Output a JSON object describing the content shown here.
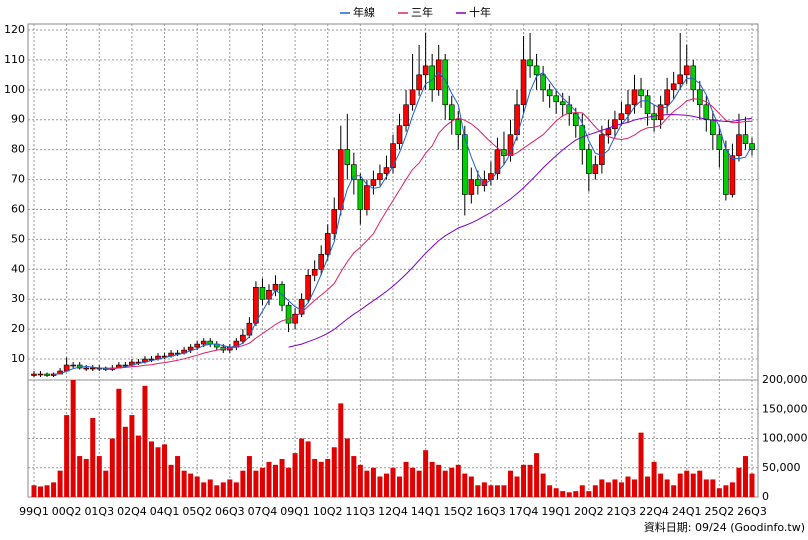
{
  "chart_data": {
    "type": "candlestick",
    "categories": [
      "99Q1",
      null,
      null,
      null,
      null,
      "00Q2",
      null,
      null,
      null,
      null,
      "01Q3",
      null,
      null,
      null,
      null,
      "02Q4",
      null,
      null,
      null,
      null,
      "04Q1",
      null,
      null,
      null,
      null,
      "05Q2",
      null,
      null,
      null,
      null,
      "06Q3",
      null,
      null,
      null,
      null,
      "07Q4",
      null,
      null,
      null,
      null,
      "09Q1",
      null,
      null,
      null,
      null,
      "10Q2",
      null,
      null,
      null,
      null,
      "11Q3",
      null,
      null,
      null,
      null,
      "12Q4",
      null,
      null,
      null,
      null,
      "14Q1",
      null,
      null,
      null,
      null,
      "15Q2",
      null,
      null,
      null,
      null,
      "16Q3",
      null,
      null,
      null,
      null,
      "17Q4",
      null,
      null,
      null,
      null,
      "19Q1",
      null,
      null,
      null,
      null,
      "20Q2",
      null,
      null,
      null,
      null,
      "21Q3",
      null,
      null,
      null,
      null,
      "22Q4",
      null,
      null,
      null,
      null,
      "24Q1",
      null,
      null,
      null,
      null,
      "25Q2",
      null,
      null,
      null,
      null,
      "26Q3"
    ],
    "open": [
      4.5,
      5,
      5,
      4.5,
      5,
      6,
      8,
      8,
      7,
      7,
      7,
      7,
      6.5,
      7,
      8,
      8,
      9,
      9,
      10,
      10,
      11,
      11,
      12,
      12,
      13,
      14,
      15,
      16,
      15,
      14,
      13,
      14,
      16,
      18,
      22,
      34,
      30,
      33,
      35,
      28,
      22,
      25,
      30,
      38,
      40,
      45,
      52,
      60,
      80,
      75,
      70,
      60,
      68,
      70,
      72,
      74,
      82,
      88,
      95,
      100,
      105,
      108,
      100,
      110,
      95,
      90,
      85,
      65,
      70,
      68,
      70,
      72,
      80,
      78,
      85,
      95,
      110,
      108,
      105,
      100,
      98,
      96,
      95,
      92,
      88,
      80,
      72,
      75,
      85,
      87,
      90,
      92,
      95,
      100,
      98,
      92,
      90,
      95,
      100,
      102,
      105,
      108,
      100,
      95,
      90,
      85,
      80,
      65,
      78,
      85,
      82
    ],
    "high": [
      6,
      6,
      5.5,
      5.5,
      7,
      10.5,
      9,
      9,
      8,
      8,
      8,
      7.5,
      8,
      9,
      9,
      10,
      10,
      11,
      11,
      12,
      12,
      13,
      13,
      14,
      15,
      16,
      17,
      17,
      16,
      15,
      15,
      17,
      20,
      24,
      36,
      37,
      35,
      38,
      36,
      29,
      27,
      32,
      40,
      43,
      48,
      55,
      64,
      88,
      92,
      79,
      72,
      70,
      73,
      75,
      78,
      85,
      92,
      100,
      112,
      115,
      119,
      112,
      115,
      112,
      98,
      93,
      88,
      74,
      73,
      73,
      76,
      84,
      86,
      90,
      100,
      118,
      119,
      112,
      108,
      102,
      100,
      99,
      98,
      94,
      92,
      82,
      78,
      88,
      90,
      93,
      96,
      100,
      105,
      104,
      100,
      95,
      98,
      104,
      106,
      119,
      115,
      110,
      103,
      98,
      93,
      88,
      83,
      82,
      92,
      91,
      84
    ],
    "low": [
      4,
      4,
      4,
      4,
      5,
      6,
      7,
      6.5,
      6,
      6,
      6,
      6,
      6,
      7,
      7,
      7.5,
      8,
      8.5,
      9,
      9.5,
      10,
      10.5,
      11,
      11.5,
      12,
      13,
      14,
      14,
      13,
      12,
      12,
      13,
      15,
      17,
      21,
      28,
      28,
      31,
      26,
      19,
      20,
      24,
      29,
      36,
      38,
      43,
      50,
      58,
      70,
      65,
      55,
      58,
      65,
      68,
      70,
      72,
      80,
      86,
      93,
      98,
      100,
      96,
      98,
      90,
      85,
      80,
      58,
      62,
      65,
      66,
      68,
      70,
      75,
      76,
      83,
      92,
      104,
      100,
      96,
      94,
      92,
      91,
      88,
      84,
      75,
      66,
      70,
      72,
      82,
      84,
      88,
      89,
      92,
      94,
      88,
      86,
      87,
      92,
      97,
      100,
      102,
      96,
      90,
      86,
      80,
      74,
      63,
      64,
      76,
      80,
      78
    ],
    "close": [
      5,
      5,
      4.5,
      5,
      6,
      8,
      8,
      7,
      7,
      7,
      7,
      6.5,
      7,
      8,
      8,
      9,
      9,
      10,
      10,
      11,
      11,
      12,
      12,
      13,
      14,
      15,
      16,
      15,
      14,
      13,
      14,
      16,
      18,
      22,
      34,
      30,
      33,
      35,
      28,
      22,
      25,
      30,
      38,
      40,
      45,
      52,
      60,
      80,
      75,
      70,
      60,
      68,
      70,
      72,
      74,
      82,
      88,
      95,
      100,
      105,
      108,
      100,
      110,
      95,
      90,
      85,
      65,
      70,
      68,
      70,
      72,
      80,
      78,
      85,
      95,
      110,
      108,
      105,
      100,
      98,
      96,
      95,
      92,
      88,
      80,
      72,
      75,
      85,
      87,
      90,
      92,
      95,
      100,
      98,
      92,
      90,
      95,
      100,
      102,
      105,
      108,
      100,
      95,
      90,
      85,
      80,
      65,
      78,
      85,
      82,
      80
    ],
    "up_color": "#ff0000",
    "down_color": "#00d000",
    "series": [
      {
        "name": "年線",
        "color": "#2060d0",
        "values": [
          null,
          null,
          null,
          4.9,
          5.1,
          5.9,
          6.8,
          7.3,
          7.5,
          7.3,
          7,
          6.9,
          6.9,
          7.1,
          7.4,
          8,
          8.5,
          9,
          9.5,
          10,
          10.5,
          11,
          11.5,
          12,
          12.8,
          13.5,
          14.5,
          15,
          15,
          14.5,
          14,
          14.3,
          15.3,
          17.5,
          22.5,
          26,
          29.8,
          33,
          31.5,
          29.5,
          27.5,
          26.3,
          28.8,
          33.3,
          38.3,
          43.8,
          49.3,
          59.3,
          66.8,
          71.3,
          71.3,
          68.3,
          67,
          67.5,
          71,
          74.5,
          79,
          84.8,
          91.3,
          97,
          102,
          103.3,
          105.8,
          103.3,
          98.8,
          95,
          83.8,
          77.5,
          72,
          68.3,
          70,
          72.5,
          75,
          78.8,
          84.5,
          92,
          99.5,
          104.5,
          105.8,
          102.8,
          99.8,
          97.3,
          95.3,
          92.8,
          88.8,
          83,
          78.8,
          78,
          79.8,
          84.3,
          88.5,
          91,
          94.3,
          96.3,
          96.3,
          95,
          93.8,
          94.3,
          96.8,
          100.5,
          103.8,
          103.8,
          102,
          98.3,
          92.5,
          87.5,
          80,
          77,
          77,
          77.5,
          81.3
        ]
      },
      {
        "name": "三年",
        "color": "#e0206a",
        "values": [
          null,
          null,
          null,
          null,
          null,
          null,
          null,
          null,
          null,
          null,
          null,
          6.6,
          6.8,
          7,
          7.2,
          7.4,
          7.6,
          7.9,
          8.1,
          8.5,
          8.8,
          9.2,
          9.6,
          10.1,
          10.7,
          11.3,
          12,
          12.5,
          13,
          13.3,
          13.6,
          14,
          14.5,
          15.3,
          17,
          18.5,
          20,
          21.6,
          22.8,
          23.4,
          24.2,
          25.6,
          27.6,
          29.6,
          31.4,
          33.2,
          35.3,
          39.1,
          42.5,
          45.5,
          47.4,
          49.6,
          51.9,
          55.8,
          59.5,
          63,
          66.5,
          70.1,
          73.4,
          75.5,
          78.8,
          81.3,
          85.5,
          87.8,
          89.5,
          90.6,
          89.8,
          88.6,
          86.8,
          84.6,
          82.5,
          80.6,
          78.8,
          78,
          78.9,
          80.5,
          82,
          83.5,
          85,
          87.3,
          89.6,
          91.3,
          92.2,
          92.4,
          92.3,
          90.1,
          87.6,
          85.5,
          84.4,
          83.7,
          83.4,
          83.8,
          84.9,
          86.4,
          87.3,
          87.5,
          88.1,
          90.5,
          92.8,
          94.4,
          96.3,
          97,
          96.8,
          96,
          94.3,
          92,
          89.8,
          89,
          89.1,
          89.4,
          89.5
        ]
      },
      {
        "name": "十年",
        "color": "#8000c8",
        "values": [
          null,
          null,
          null,
          null,
          null,
          null,
          null,
          null,
          null,
          null,
          null,
          null,
          null,
          null,
          null,
          null,
          null,
          null,
          null,
          null,
          null,
          null,
          null,
          null,
          null,
          null,
          null,
          null,
          null,
          null,
          null,
          null,
          null,
          null,
          null,
          null,
          null,
          null,
          null,
          14,
          14.5,
          15,
          15.8,
          16.6,
          17.5,
          18.6,
          19.9,
          21.7,
          23.4,
          25,
          26.4,
          28,
          29.5,
          31,
          32.6,
          34.4,
          36.3,
          38.4,
          40.6,
          43,
          45.4,
          47.5,
          49.6,
          51.2,
          52.5,
          53.8,
          54.6,
          55.5,
          56.6,
          57.8,
          59,
          60.5,
          62,
          63.5,
          65.3,
          67.2,
          69.4,
          71.6,
          73.9,
          76,
          78,
          79.9,
          81.6,
          83.2,
          84.2,
          85,
          85.7,
          86.5,
          87.2,
          88,
          88.6,
          89.1,
          89.9,
          90.4,
          90.8,
          91.2,
          91.5,
          91.7,
          91.7,
          91.6,
          91.5,
          91.1,
          90.6,
          90.2,
          89.8,
          89.6,
          89.4,
          89.5,
          89.8,
          90.2,
          90.5
        ]
      }
    ],
    "ylim": [
      3,
      122
    ],
    "yticks": [
      10,
      20,
      30,
      40,
      50,
      60,
      70,
      80,
      90,
      100,
      110,
      120
    ],
    "grid": true,
    "volume": {
      "color": "#e00000",
      "values": [
        20000,
        18000,
        20000,
        25000,
        45000,
        140000,
        200000,
        70000,
        65000,
        135000,
        70000,
        45000,
        100000,
        185000,
        120000,
        140000,
        105000,
        190000,
        95000,
        85000,
        90000,
        55000,
        70000,
        45000,
        40000,
        35000,
        25000,
        30000,
        20000,
        25000,
        30000,
        25000,
        45000,
        70000,
        45000,
        50000,
        60000,
        55000,
        65000,
        50000,
        75000,
        100000,
        95000,
        65000,
        60000,
        65000,
        85000,
        160000,
        100000,
        70000,
        55000,
        45000,
        50000,
        35000,
        40000,
        50000,
        35000,
        60000,
        50000,
        45000,
        80000,
        60000,
        55000,
        45000,
        50000,
        55000,
        40000,
        35000,
        20000,
        25000,
        20000,
        20000,
        20000,
        45000,
        35000,
        55000,
        55000,
        75000,
        40000,
        20000,
        15000,
        10000,
        8000,
        10000,
        20000,
        10000,
        20000,
        30000,
        25000,
        30000,
        25000,
        35000,
        30000,
        110000,
        35000,
        60000,
        40000,
        30000,
        20000,
        40000,
        45000,
        40000,
        45000,
        30000,
        30000,
        15000,
        20000,
        25000,
        50000,
        70000,
        40000
      ],
      "ylim": [
        0,
        200000
      ],
      "yticks": [
        {
          "value": 0,
          "label": "0"
        },
        {
          "value": 50000,
          "label": "50,000"
        },
        {
          "value": 100000,
          "label": "100,000"
        },
        {
          "value": 150000,
          "label": "150,000"
        },
        {
          "value": 200000,
          "label": "200,000"
        }
      ]
    }
  },
  "footer": "資料日期: 09/24 (Goodinfo.tw)"
}
